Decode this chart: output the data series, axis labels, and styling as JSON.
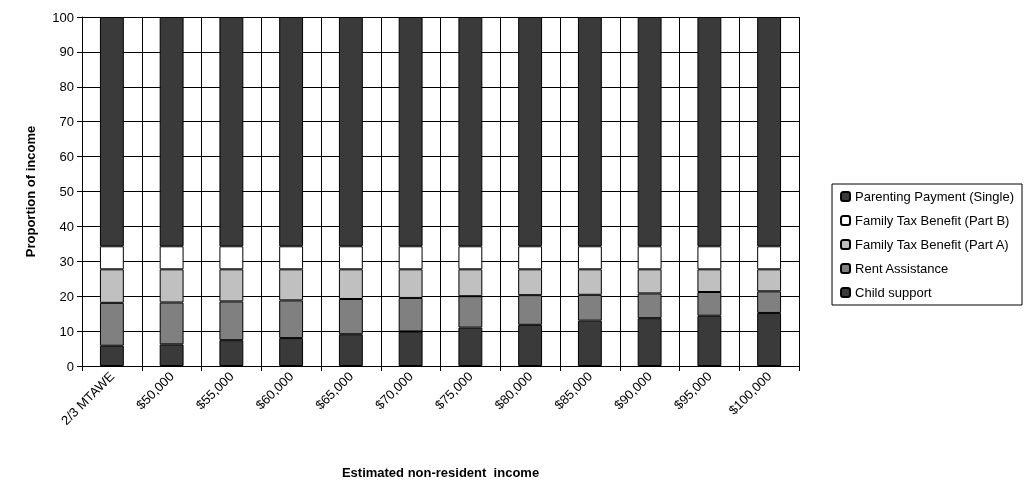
{
  "chart_data": {
    "type": "bar",
    "stacked": true,
    "xlabel": "Estimated non-resident  income",
    "ylabel": "Proportion of income",
    "categories": [
      "2/3 MTAWE",
      "$50,000",
      "$55,000",
      "$60,000",
      "$65,000",
      "$70,000",
      "$75,000",
      "$80,000",
      "$85,000",
      "$90,000",
      "$95,000",
      "$100,000"
    ],
    "series": [
      {
        "name": "Child support",
        "color": "#3a3a3a",
        "values": [
          5.8,
          6.2,
          7.4,
          8.0,
          9.1,
          9.9,
          11.0,
          11.8,
          13.0,
          13.7,
          14.4,
          15.2
        ]
      },
      {
        "name": "Rent Assistance",
        "color": "#808080",
        "values": [
          12.3,
          12.0,
          11.1,
          10.8,
          10.1,
          9.6,
          9.0,
          8.5,
          7.4,
          7.1,
          6.8,
          6.2
        ]
      },
      {
        "name": "Family Tax Benefit (Part A)",
        "color": "#c0c0c0",
        "values": [
          9.6,
          9.5,
          9.2,
          8.9,
          8.5,
          8.2,
          7.7,
          7.4,
          7.3,
          6.9,
          6.5,
          6.3
        ]
      },
      {
        "name": "Family Tax Benefit (Part B)",
        "color": "#ffffff",
        "values": [
          6.6,
          6.6,
          6.6,
          6.6,
          6.6,
          6.6,
          6.6,
          6.6,
          6.6,
          6.6,
          6.6,
          6.6
        ]
      },
      {
        "name": "Parenting Payment (Single)",
        "color": "#3a3a3a",
        "values": [
          65.7,
          65.7,
          65.7,
          65.7,
          65.7,
          65.7,
          65.7,
          65.7,
          65.7,
          65.7,
          65.7,
          65.7
        ]
      }
    ],
    "ylim": [
      0,
      100
    ],
    "yticks": [
      0,
      10,
      20,
      30,
      40,
      50,
      60,
      70,
      80,
      90,
      100
    ],
    "grid": true,
    "legend": "right"
  }
}
